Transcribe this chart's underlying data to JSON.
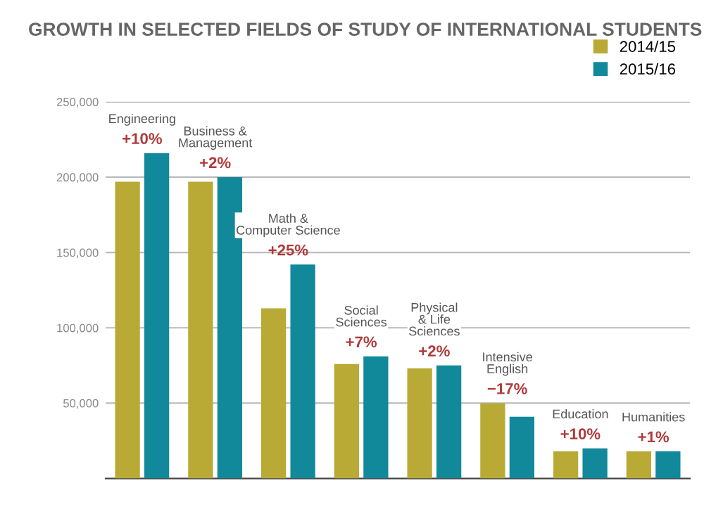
{
  "chart_data": {
    "type": "bar",
    "title": "GROWTH IN SELECTED FIELDS OF STUDY OF INTERNATIONAL STUDENTS",
    "categories": [
      "Engineering",
      "Business &\nManagement",
      "Math &\nComputer Science",
      "Social\nSciences",
      "Physical\n& Life\nSciences",
      "Intensive\nEnglish",
      "Education",
      "Humanities"
    ],
    "series": [
      {
        "name": "2014/15",
        "color": "#b8aa35",
        "values": [
          197000,
          197000,
          113000,
          76000,
          73000,
          50000,
          18000,
          18000
        ]
      },
      {
        "name": "2015/16",
        "color": "#11899a",
        "values": [
          216000,
          200000,
          142000,
          81000,
          75000,
          41000,
          20000,
          18000
        ]
      }
    ],
    "ylim": [
      0,
      250000
    ],
    "yticks": [
      {
        "value": 50000,
        "label": "50,000"
      },
      {
        "value": 100000,
        "label": "100,000"
      },
      {
        "value": 150000,
        "label": "150,000"
      },
      {
        "value": 200000,
        "label": "200,000"
      },
      {
        "value": 250000,
        "label": "250,000"
      }
    ],
    "grid": "y",
    "legend": "top right",
    "tick_labels": "y",
    "annotations": [
      {
        "text": "+10%",
        "x": "Engineering",
        "y": 216000
      },
      {
        "text": "+2%",
        "x": "Business &\nManagement",
        "y": 200000
      },
      {
        "text": "+25%",
        "x": "Math &\nComputer Science",
        "y": 142000
      },
      {
        "text": "+7%",
        "x": "Social\nSciences",
        "y": 81000
      },
      {
        "text": "+2%",
        "x": "Physical\n& Life\nSciences",
        "y": 75000
      },
      {
        "text": "−17%",
        "x": "Intensive\nEnglish",
        "y": 50000
      },
      {
        "text": "+10%",
        "x": "Education",
        "y": 20000
      },
      {
        "text": "+1%",
        "x": "Humanities",
        "y": 18000
      }
    ]
  }
}
